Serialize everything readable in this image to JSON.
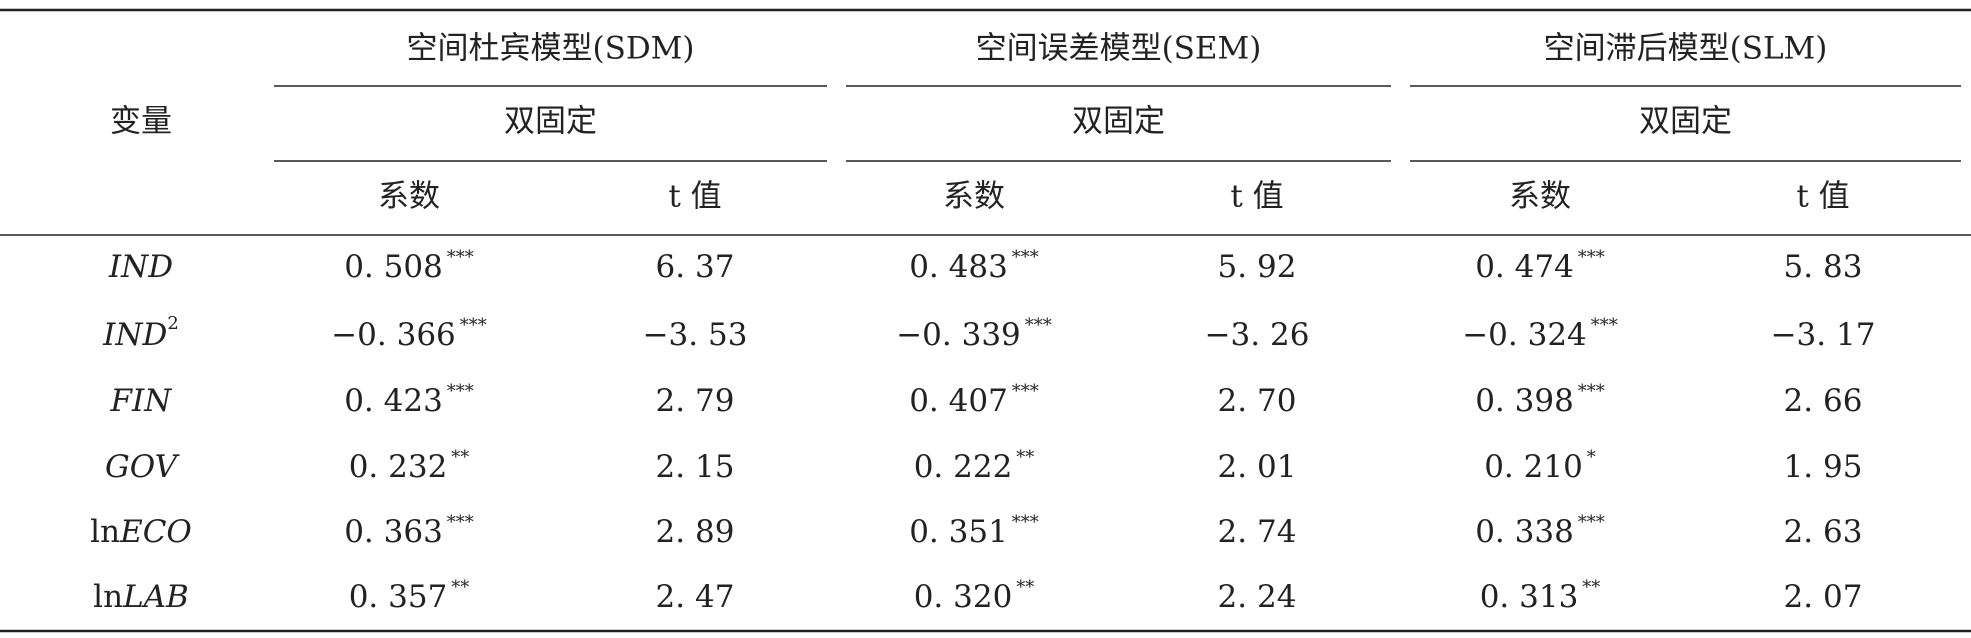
{
  "table": {
    "row_header": "变量",
    "groups": [
      {
        "model": "空间杜宾模型(SDM)",
        "effect": "双固定",
        "columns": [
          "系数",
          "t 值"
        ]
      },
      {
        "model": "空间误差模型(SEM)",
        "effect": "双固定",
        "columns": [
          "系数",
          "t 值"
        ]
      },
      {
        "model": "空间滞后模型(SLM)",
        "effect": "双固定",
        "columns": [
          "系数",
          "t 值"
        ]
      }
    ],
    "rows": [
      {
        "variable": {
          "name": "IND"
        },
        "cells": [
          {
            "coef": "0. 508",
            "sig": "***"
          },
          {
            "t": "6. 37"
          },
          {
            "coef": "0. 483",
            "sig": "***"
          },
          {
            "t": "5. 92"
          },
          {
            "coef": "0. 474",
            "sig": "***"
          },
          {
            "t": "5. 83"
          }
        ]
      },
      {
        "variable": {
          "name": "IND",
          "sup": "2"
        },
        "cells": [
          {
            "coef": "−0. 366",
            "sig": "***"
          },
          {
            "t": "−3. 53"
          },
          {
            "coef": "−0. 339",
            "sig": "***"
          },
          {
            "t": "−3. 26"
          },
          {
            "coef": "−0. 324",
            "sig": "***"
          },
          {
            "t": "−3. 17"
          }
        ]
      },
      {
        "variable": {
          "name": "FIN"
        },
        "cells": [
          {
            "coef": "0. 423",
            "sig": "***"
          },
          {
            "t": "2. 79"
          },
          {
            "coef": "0. 407",
            "sig": "***"
          },
          {
            "t": "2. 70"
          },
          {
            "coef": "0. 398",
            "sig": "***"
          },
          {
            "t": "2. 66"
          }
        ]
      },
      {
        "variable": {
          "name": "GOV"
        },
        "cells": [
          {
            "coef": "0. 232",
            "sig": "**"
          },
          {
            "t": "2. 15"
          },
          {
            "coef": "0. 222",
            "sig": "**"
          },
          {
            "t": "2. 01"
          },
          {
            "coef": "0. 210",
            "sig": "*"
          },
          {
            "t": "1. 95"
          }
        ]
      },
      {
        "variable": {
          "prefix": "ln",
          "name": "ECO"
        },
        "cells": [
          {
            "coef": "0. 363",
            "sig": "***"
          },
          {
            "t": "2. 89"
          },
          {
            "coef": "0. 351",
            "sig": "***"
          },
          {
            "t": "2. 74"
          },
          {
            "coef": "0. 338",
            "sig": "***"
          },
          {
            "t": "2. 63"
          }
        ]
      },
      {
        "variable": {
          "prefix": "ln",
          "name": "LAB"
        },
        "cells": [
          {
            "coef": "0. 357",
            "sig": "**"
          },
          {
            "t": "2. 47"
          },
          {
            "coef": "0. 320",
            "sig": "**"
          },
          {
            "t": "2. 24"
          },
          {
            "coef": "0. 313",
            "sig": "**"
          },
          {
            "t": "2. 07"
          }
        ]
      }
    ]
  }
}
